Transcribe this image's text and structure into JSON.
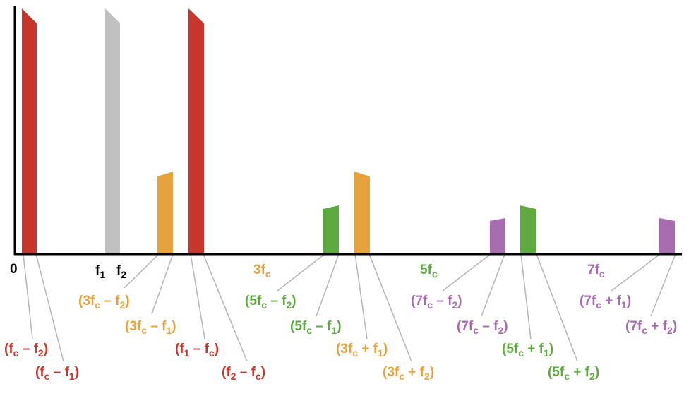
{
  "colors": {
    "red": "#c9372c",
    "gray": "#c0c0c0",
    "orange": "#e6a23c",
    "green": "#5daa3e",
    "purple": "#a86bb0",
    "axis": "#000000",
    "leader": "#b5b5b5"
  },
  "axis_labels": {
    "origin": "0",
    "f1": "f",
    "f1_sub": "1",
    "f2": "f",
    "f2_sub": "2",
    "h3": "3f",
    "h3_sub": "c",
    "h5": "5f",
    "h5_sub": "c",
    "h7": "7f",
    "h7_sub": "c"
  },
  "component_labels": [
    {
      "key": "red_1",
      "color": "red",
      "parts": [
        [
          "(f",
          ""
        ],
        [
          "c",
          "sub"
        ],
        [
          " – f",
          ""
        ],
        [
          "2",
          "sub"
        ],
        [
          ")",
          ""
        ]
      ]
    },
    {
      "key": "red_2",
      "color": "red",
      "parts": [
        [
          "(f",
          ""
        ],
        [
          "c",
          "sub"
        ],
        [
          " – f",
          ""
        ],
        [
          "1",
          "sub"
        ],
        [
          ")",
          ""
        ]
      ]
    },
    {
      "key": "orange_1",
      "color": "orange",
      "parts": [
        [
          "(3f",
          ""
        ],
        [
          "c",
          "sub"
        ],
        [
          " – f",
          ""
        ],
        [
          "2",
          "sub"
        ],
        [
          ")",
          ""
        ]
      ]
    },
    {
      "key": "orange_2",
      "color": "orange",
      "parts": [
        [
          "(3f",
          ""
        ],
        [
          "c",
          "sub"
        ],
        [
          " – f",
          ""
        ],
        [
          "1",
          "sub"
        ],
        [
          ")",
          ""
        ]
      ]
    },
    {
      "key": "red_3",
      "color": "red",
      "parts": [
        [
          "(f",
          ""
        ],
        [
          "1",
          "sub"
        ],
        [
          " – f",
          ""
        ],
        [
          "c",
          "sub"
        ],
        [
          ")",
          ""
        ]
      ]
    },
    {
      "key": "red_4",
      "color": "red",
      "parts": [
        [
          "(f",
          ""
        ],
        [
          "2",
          "sub"
        ],
        [
          " – f",
          ""
        ],
        [
          "c",
          "sub"
        ],
        [
          ")",
          ""
        ]
      ]
    },
    {
      "key": "green_1",
      "color": "green",
      "parts": [
        [
          "(5f",
          ""
        ],
        [
          "c",
          "sub"
        ],
        [
          " – f",
          ""
        ],
        [
          "2",
          "sub"
        ],
        [
          ")",
          ""
        ]
      ]
    },
    {
      "key": "green_2",
      "color": "green",
      "parts": [
        [
          "(5f",
          ""
        ],
        [
          "c",
          "sub"
        ],
        [
          " – f",
          ""
        ],
        [
          "1",
          "sub"
        ],
        [
          ")",
          ""
        ]
      ]
    },
    {
      "key": "orange_3",
      "color": "orange",
      "parts": [
        [
          "(3f",
          ""
        ],
        [
          "c",
          "sub"
        ],
        [
          " + f",
          ""
        ],
        [
          "1",
          "sub"
        ],
        [
          ")",
          ""
        ]
      ]
    },
    {
      "key": "orange_4",
      "color": "orange",
      "parts": [
        [
          "(3f",
          ""
        ],
        [
          "c",
          "sub"
        ],
        [
          " + f",
          ""
        ],
        [
          "2",
          "sub"
        ],
        [
          ")",
          ""
        ]
      ]
    },
    {
      "key": "purple_1",
      "color": "purple",
      "parts": [
        [
          "(7f",
          ""
        ],
        [
          "c",
          "sub"
        ],
        [
          " – f",
          ""
        ],
        [
          "2",
          "sub"
        ],
        [
          ")",
          ""
        ]
      ]
    },
    {
      "key": "purple_2",
      "color": "purple",
      "parts": [
        [
          "(7f",
          ""
        ],
        [
          "c",
          "sub"
        ],
        [
          " – f",
          ""
        ],
        [
          "2",
          "sub"
        ],
        [
          ")",
          ""
        ]
      ]
    },
    {
      "key": "green_3",
      "color": "green",
      "parts": [
        [
          "(5f",
          ""
        ],
        [
          "c",
          "sub"
        ],
        [
          " + f",
          ""
        ],
        [
          "1",
          "sub"
        ],
        [
          ")",
          ""
        ]
      ]
    },
    {
      "key": "green_4",
      "color": "green",
      "parts": [
        [
          "(5f",
          ""
        ],
        [
          "c",
          "sub"
        ],
        [
          " + f",
          ""
        ],
        [
          "2",
          "sub"
        ],
        [
          ")",
          ""
        ]
      ]
    },
    {
      "key": "purple_3",
      "color": "purple",
      "parts": [
        [
          "(7f",
          ""
        ],
        [
          "c",
          "sub"
        ],
        [
          " + f",
          ""
        ],
        [
          "1",
          "sub"
        ],
        [
          ")",
          ""
        ]
      ]
    },
    {
      "key": "purple_4",
      "color": "purple",
      "parts": [
        [
          "(7f",
          ""
        ],
        [
          "c",
          "sub"
        ],
        [
          " + f",
          ""
        ],
        [
          "2",
          "sub"
        ],
        [
          ")",
          ""
        ]
      ]
    }
  ]
}
